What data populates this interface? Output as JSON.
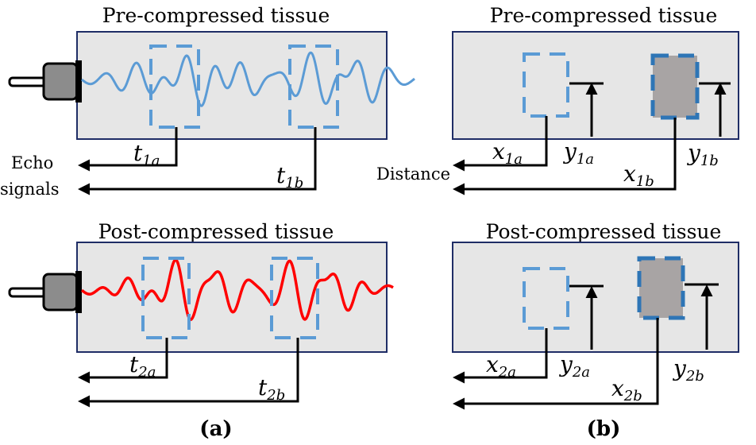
{
  "panel_a": {
    "label": "(a)",
    "echo_label": [
      "Echo",
      "signals"
    ],
    "top": {
      "title": "Pre-compressed tissue",
      "t_a": {
        "base": "t",
        "sub": "1a"
      },
      "t_b": {
        "base": "t",
        "sub": "1b"
      }
    },
    "bottom": {
      "title": "Post-compressed tissue",
      "t_a": {
        "base": "t",
        "sub": "2a"
      },
      "t_b": {
        "base": "t",
        "sub": "2b"
      }
    }
  },
  "panel_b": {
    "label": "(b)",
    "distance_label": "Distance",
    "top": {
      "title": "Pre-compressed tissue",
      "x_a": {
        "base": "x",
        "sub": "1a"
      },
      "y_a": {
        "base": "y",
        "sub": "1a"
      },
      "x_b": {
        "base": "x",
        "sub": "1b"
      },
      "y_b": {
        "base": "y",
        "sub": "1b"
      }
    },
    "bottom": {
      "title": "Post-compressed tissue",
      "x_a": {
        "base": "x",
        "sub": "2a"
      },
      "y_a": {
        "base": "y",
        "sub": "2a"
      },
      "x_b": {
        "base": "x",
        "sub": "2b"
      },
      "y_b": {
        "base": "y",
        "sub": "2b"
      }
    }
  }
}
